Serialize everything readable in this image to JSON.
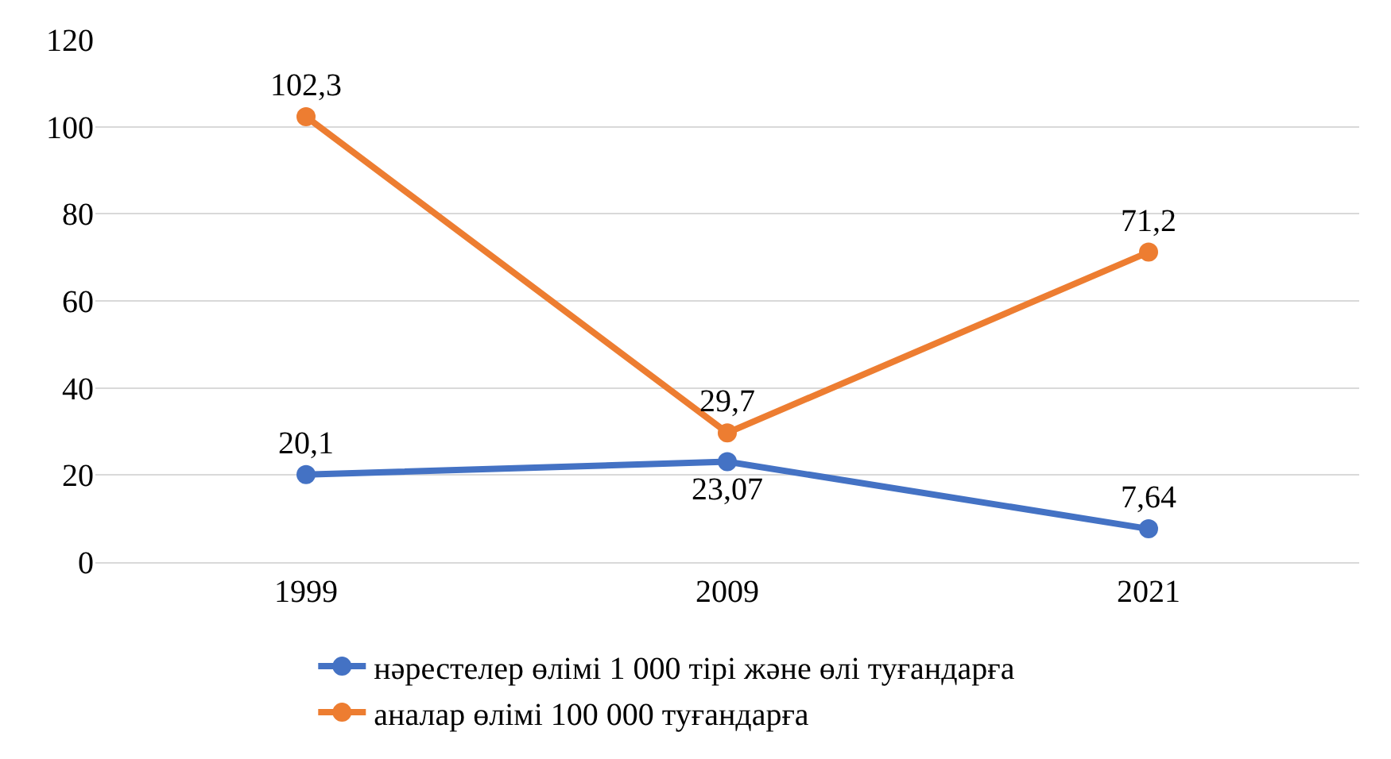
{
  "chart_data": {
    "type": "line",
    "categories": [
      "1999",
      "2009",
      "2021"
    ],
    "series": [
      {
        "name": "нәрестелер өлімі 1 000 тірі және өлі туғандарға",
        "color": "#4472c4",
        "values": [
          20.1,
          23.07,
          7.64
        ],
        "value_labels": [
          "20,1",
          "23,07",
          "7,64"
        ]
      },
      {
        "name": "аналар өлімі 100 000 туғандарға",
        "color": "#ed7d31",
        "values": [
          102.3,
          29.7,
          71.2
        ],
        "value_labels": [
          "102,3",
          "29,7",
          "71,2"
        ]
      }
    ],
    "ylim": [
      0,
      120
    ],
    "yticks": [
      0,
      20,
      40,
      60,
      80,
      100,
      120
    ],
    "grid": "y",
    "legend": "bottom",
    "marker": "circle",
    "line_style": "solid"
  }
}
